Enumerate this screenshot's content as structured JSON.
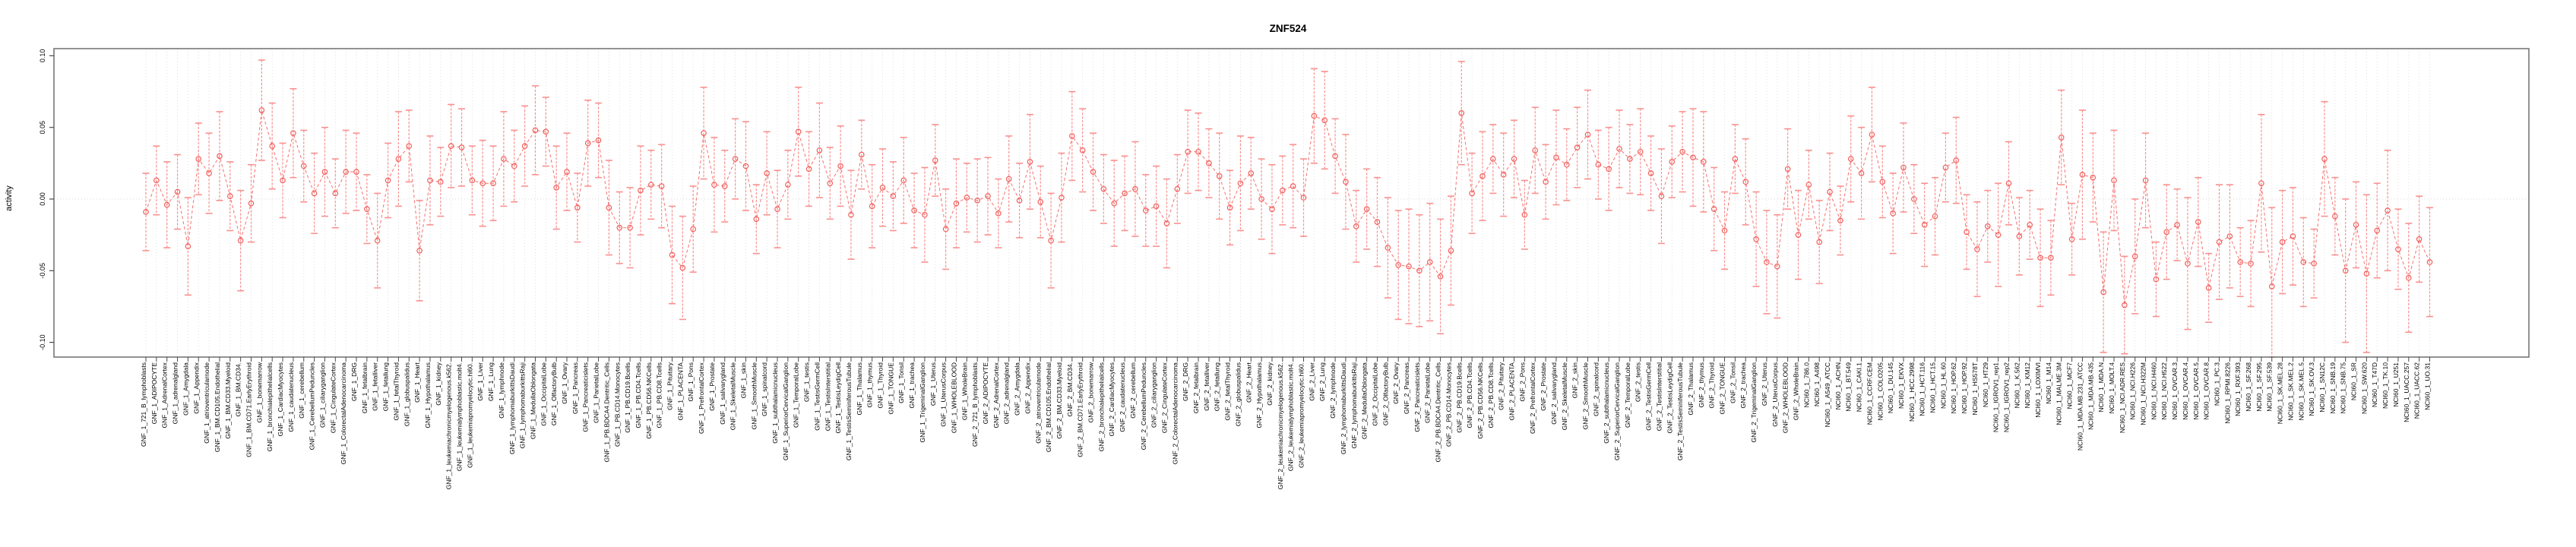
{
  "title": "ZNF524",
  "y_axis": {
    "label": "activity",
    "tick_labels": [
      "0.10",
      "0.05",
      "0.00",
      "-0.05",
      "-0.10"
    ],
    "tick_values": [
      0.1,
      0.05,
      0.0,
      -0.05,
      -0.1
    ]
  },
  "colors": {
    "point": "#f25f5c",
    "connector": "#f4726f",
    "errorbar": "#f9918f",
    "grid": "#d9d9d9",
    "zero_line": "#d9d9d9",
    "box": "#6e6e6e",
    "tick": "#4a4a4a",
    "label_text": "#000000"
  },
  "chart_data": {
    "type": "scatter",
    "subtype": "points-with-errorbars-and-dashed-connector",
    "title": "ZNF524",
    "xlabel": "",
    "ylabel": "activity",
    "ylim": [
      -0.112,
      0.105
    ],
    "yticks": [
      0.1,
      0.05,
      0.0,
      -0.05,
      -0.1
    ],
    "grid": "vertical dotted line per category; dotted horizontal line at 0",
    "legend": "none",
    "categories": [
      "GNF_1_721_B_lymphoblasts",
      "GNF_1_ADIPOCYTE",
      "GNF_1_AdrenalCortex",
      "GNF_1_adrenalgland",
      "GNF_1_Amygdala",
      "GNF_1_Appendix",
      "GNF_1_atrioventricularnode",
      "GNF_1_BM.CD105.Endothelial",
      "GNF_1_BM.CD33.Myeloid",
      "GNF_1_BM.CD34.",
      "GNF_1_BM.CD71.EarlyErythroid",
      "GNF_1_bonemarrow",
      "GNF_1_bronchialepithelialcells",
      "GNF_1_CardiacMyocytes",
      "GNF_1_caudatenucleus",
      "GNF_1_cerebellum",
      "GNF_1_CerebellumPeduncles",
      "GNF_1_ciliaryganglion",
      "GNF_1_CingulateCortex",
      "GNF_1_ColorectalAdenocarcinoma",
      "GNF_1_DRG",
      "GNF_1_fetalbrain",
      "GNF_1_fetalliver",
      "GNF_1_fetallung",
      "GNF_1_fetalThyroid",
      "GNF_1_globuspalidus",
      "GNF_1_Heart",
      "GNF_1_Hypothalamus",
      "GNF_1_kidney",
      "GNF_1_leukemiachronicmyelogenous.k562.",
      "GNF_1_leukemialymphoblastic.molt4.",
      "GNF_1_leukemiapromyelocytic.hl60.",
      "GNF_1_Liver",
      "GNF_1_Lung",
      "GNF_1_lymphnode",
      "GNF_1_lymphomaburkittsDaudi",
      "GNF_1_lymphomaburkittsRaji",
      "GNF_1_MedullaOblongata",
      "GNF_1_OccipitalLobe",
      "GNF_1_OlfactoryBulb",
      "GNF_1_Ovary",
      "GNF_1_Pancreas",
      "GNF_1_Pancreaticislets",
      "GNF_1_ParietalLobe",
      "GNF_1_PB.BDCA4.Dentritic_Cells",
      "GNF_1_PB.CD14.Monocytes",
      "GNF_1_PB.CD19.Bcells",
      "GNF_1_PB.CD4.Tcells",
      "GNF_1_PB.CD56.NKCells",
      "GNF_1_PB.CD8.Tcells",
      "GNF_1_Pituitary",
      "GNF_1_PLACENTA",
      "GNF_1_Pons",
      "GNF_1_PrefrontalCortex",
      "GNF_1_Prostate",
      "GNF_1_salivarygland",
      "GNF_1_SkeletalMuscle",
      "GNF_1_skin",
      "GNF_1_SmoothMuscle",
      "GNF_1_spinalcord",
      "GNF_1_subthalamicnucleus",
      "GNF_1_SuperiorCervicalGanglion",
      "GNF_1_TemporalLobe",
      "GNF_1_testis",
      "GNF_1_TestisGermCell",
      "GNF_1_TestisInterstitial",
      "GNF_1_TestisLeydigCell",
      "GNF_1_TestisSeminiferousTubule",
      "GNF_1_Thalamus",
      "GNF_1_thymus",
      "GNF_1_Thyroid",
      "GNF_1_TONGUE",
      "GNF_1_Tonsil",
      "GNF_1_trachea",
      "GNF_1_TrigeminalGanglion",
      "GNF_1_Uterus",
      "GNF_1_UterusCorpus",
      "GNF_1_WHOLEBLOOD",
      "GNF_1_WholeBrain",
      "GNF_2_721_B_lymphoblasts",
      "GNF_2_ADIPOCYTE",
      "GNF_2_AdrenalCortex",
      "GNF_2_adrenalgland",
      "GNF_2_Amygdala",
      "GNF_2_Appendix",
      "GNF_2_atrioventricularnode",
      "GNF_2_BM.CD105.Endothelial",
      "GNF_2_BM.CD33.Myeloid",
      "GNF_2_BM.CD34.",
      "GNF_2_BM.CD71.EarlyErythroid",
      "GNF_2_bonemarrow",
      "GNF_2_bronchialepithelialcells",
      "GNF_2_CardiacMyocytes",
      "GNF_2_caudatenucleus",
      "GNF_2_cerebellum",
      "GNF_2_CerebellumPeduncles",
      "GNF_2_ciliaryganglion",
      "GNF_2_CingulateCortex",
      "GNF_2_ColorectalAdenocarcinoma",
      "GNF_2_DRG",
      "GNF_2_fetalbrain",
      "GNF_2_fetalliver",
      "GNF_2_fetallung",
      "GNF_2_fetalThyroid",
      "GNF_2_globuspalidus",
      "GNF_2_Heart",
      "GNF_2_Hypothalamus",
      "GNF_2_kidney",
      "GNF_2_leukemiachronicmyelogenous.k562.",
      "GNF_2_leukemialymphoblastic.molt4.",
      "GNF_2_leukemiapromyelocytic.hl60.",
      "GNF_2_Liver",
      "GNF_2_Lung",
      "GNF_2_lymphnode",
      "GNF_2_lymphomaburkittsDaudi",
      "GNF_2_lymphomaburkittsRaji",
      "GNF_2_MedullaOblongata",
      "GNF_2_OccipitalLobe",
      "GNF_2_OlfactoryBulb",
      "GNF_2_Ovary",
      "GNF_2_Pancreas",
      "GNF_2_Pancreaticislets",
      "GNF_2_ParietalLobe",
      "GNF_2_PB.BDCA4.Dentritic_Cells",
      "GNF_2_PB.CD14.Monocytes",
      "GNF_2_PB.CD19.Bcells",
      "GNF_2_PB.CD4.Tcells",
      "GNF_2_PB.CD56.NKCells",
      "GNF_2_PB.CD8.Tcells",
      "GNF_2_Pituitary",
      "GNF_2_PLACENTA",
      "GNF_2_Pons",
      "GNF_2_PrefrontalCortex",
      "GNF_2_Prostate",
      "GNF_2_salivarygland",
      "GNF_2_SkeletalMuscle",
      "GNF_2_skin",
      "GNF_2_SmoothMuscle",
      "GNF_2_spinalcord",
      "GNF_2_subthalamicnucleus",
      "GNF_2_SuperiorCervicalGanglion",
      "GNF_2_TemporalLobe",
      "GNF_2_testis",
      "GNF_2_TestisGermCell",
      "GNF_2_TestisInterstitial",
      "GNF_2_TestisLeydigCell",
      "GNF_2_TestisSeminiferousTubule",
      "GNF_2_Thalamus",
      "GNF_2_thymus",
      "GNF_2_Thyroid",
      "GNF_2_TONGUE",
      "GNF_2_Tonsil",
      "GNF_2_trachea",
      "GNF_2_TrigeminalGanglion",
      "GNF_2_Uterus",
      "GNF_2_UterusCorpus",
      "GNF_2_WHOLEBLOOD",
      "GNF_2_WholeBrain",
      "NCI60_1_786.0",
      "NCI60_1_A498",
      "NCI60_1_A549_ATCC",
      "NCI60_1_ACHN",
      "NCI60_1_BT.549",
      "NCI60_1_CAKI.1",
      "NCI60_1_CCRF.CEM",
      "NCI60_1_COLO205",
      "NCI60_1_DU.145",
      "NCI60_1_EKVX",
      "NCI60_1_HCC.2998",
      "NCI60_1_HCT.116",
      "NCI60_1_HCT.15",
      "NCI60_1_HL.60",
      "NCI60_1_HOP.62",
      "NCI60_1_HOP.92",
      "NCI60_1_HS578T",
      "NCI60_1_HT29",
      "NCI60_1_IGROV1_rep1",
      "NCI60_1_IGROV1_rep2",
      "NCI60_1_K.562",
      "NCI60_1_KM12",
      "NCI60_1_LOXIMVI",
      "NCI60_1_M14",
      "NCI60_1_MALME.3M",
      "NCI60_1_MCF7",
      "NCI60_1_MDA.MB.231_ATCC",
      "NCI60_1_MDA.MB.435",
      "NCI60_1_MDA.N",
      "NCI60_1_MOLT.4",
      "NCI60_1_NCI.ADR.RES",
      "NCI60_1_NCI.H226",
      "NCI60_1_NCI.H322M",
      "NCI60_1_NCI.H460",
      "NCI60_1_NCI.H522",
      "NCI60_1_OVCAR.3",
      "NCI60_1_OVCAR.4",
      "NCI60_1_OVCAR.5",
      "NCI60_1_OVCAR.8",
      "NCI60_1_PC.3",
      "NCI60_1_RPMI.8226",
      "NCI60_1_RXF.393",
      "NCI60_1_SF.268",
      "NCI60_1_SF.295",
      "NCI60_1_SF.539",
      "NCI60_1_SK.MEL.28",
      "NCI60_1_SK.MEL.2",
      "NCI60_1_SK.MEL.5",
      "NCI60_1_SK.OV.3",
      "NCI60_1_SN12C",
      "NCI60_1_SNB.19",
      "NCI60_1_SNB.75",
      "NCI60_1_SR",
      "NCI60_1_SW.620",
      "NCI60_1_T47D",
      "NCI60_1_TK.10",
      "NCI60_1_U251",
      "NCI60_1_UACC.257",
      "NCI60_1_UACC.62",
      "NCI60_1_UO.31"
    ],
    "values": [
      -0.009,
      0.013,
      -0.004,
      0.005,
      -0.033,
      0.028,
      0.018,
      0.03,
      0.002,
      -0.029,
      -0.003,
      0.062,
      0.037,
      0.013,
      0.046,
      0.023,
      0.004,
      0.019,
      0.004,
      0.019,
      0.019,
      -0.007,
      -0.029,
      0.013,
      0.028,
      0.037,
      -0.036,
      0.013,
      0.012,
      0.037,
      0.036,
      0.013,
      0.011,
      0.011,
      0.028,
      0.023,
      0.037,
      0.048,
      0.047,
      0.008,
      0.019,
      -0.006,
      0.039,
      0.041,
      -0.006,
      -0.02,
      -0.02,
      0.006,
      0.01,
      0.009,
      -0.039,
      -0.048,
      -0.021,
      0.046,
      0.01,
      0.009,
      0.028,
      0.023,
      -0.014,
      0.018,
      -0.007,
      0.01,
      0.047,
      0.021,
      0.034,
      0.011,
      0.023,
      -0.011,
      0.031,
      -0.005,
      0.008,
      0.002,
      0.013,
      -0.008,
      -0.011,
      0.027,
      -0.021,
      -0.003,
      0.001,
      -0.001,
      0.002,
      -0.01,
      0.014,
      -0.001,
      0.026,
      -0.002,
      -0.029,
      0.001,
      0.044,
      0.034,
      0.019,
      0.007,
      -0.003,
      0.004,
      0.007,
      -0.008,
      -0.005,
      -0.017,
      0.007,
      0.033,
      0.033,
      0.025,
      0.016,
      -0.006,
      0.011,
      0.018,
      0.0,
      -0.007,
      0.006,
      0.009,
      0.001,
      0.058,
      0.055,
      0.03,
      0.012,
      -0.019,
      -0.007,
      -0.016,
      -0.034,
      -0.046,
      -0.047,
      -0.05,
      -0.044,
      -0.054,
      -0.036,
      0.06,
      0.004,
      0.016,
      0.028,
      0.017,
      0.028,
      -0.011,
      0.034,
      0.012,
      0.029,
      0.024,
      0.036,
      0.045,
      0.024,
      0.021,
      0.035,
      0.028,
      0.033,
      0.018,
      0.002,
      0.026,
      0.033,
      0.029,
      0.026,
      -0.007,
      -0.022,
      0.028,
      0.012,
      -0.028,
      -0.044,
      -0.047,
      0.021,
      -0.025,
      0.01,
      -0.03,
      0.005,
      -0.015,
      0.028,
      0.018,
      0.045,
      0.012,
      -0.01,
      0.022,
      0.0,
      -0.018,
      -0.012,
      0.022,
      0.027,
      -0.023,
      -0.035,
      -0.019,
      -0.025,
      0.011,
      -0.026,
      -0.018,
      -0.041,
      -0.041,
      0.043,
      -0.028,
      0.017,
      0.015,
      -0.065,
      0.013,
      -0.074,
      -0.04,
      0.013,
      -0.056,
      -0.023,
      -0.018,
      -0.045,
      -0.016,
      -0.062,
      -0.03,
      -0.026,
      -0.044,
      -0.045,
      0.011,
      -0.061,
      -0.03,
      -0.026,
      -0.044,
      -0.045,
      0.028,
      -0.012,
      -0.05,
      -0.018,
      -0.052,
      -0.022,
      -0.008,
      -0.035,
      -0.055,
      -0.028,
      -0.044
    ],
    "errors": [
      0.027,
      0.024,
      0.03,
      0.026,
      0.034,
      0.025,
      0.028,
      0.031,
      0.024,
      0.035,
      0.027,
      0.035,
      0.03,
      0.026,
      0.031,
      0.025,
      0.028,
      0.031,
      0.024,
      0.029,
      0.027,
      0.024,
      0.033,
      0.026,
      0.033,
      0.025,
      0.035,
      0.031,
      0.024,
      0.029,
      0.027,
      0.024,
      0.03,
      0.026,
      0.033,
      0.025,
      0.028,
      0.031,
      0.024,
      0.029,
      0.027,
      0.024,
      0.03,
      0.026,
      0.033,
      0.025,
      0.028,
      0.031,
      0.024,
      0.029,
      0.034,
      0.036,
      0.03,
      0.032,
      0.033,
      0.025,
      0.028,
      0.031,
      0.024,
      0.029,
      0.027,
      0.024,
      0.031,
      0.026,
      0.033,
      0.025,
      0.028,
      0.031,
      0.024,
      0.029,
      0.027,
      0.024,
      0.03,
      0.026,
      0.033,
      0.025,
      0.028,
      0.031,
      0.024,
      0.029,
      0.027,
      0.024,
      0.03,
      0.026,
      0.033,
      0.025,
      0.033,
      0.031,
      0.031,
      0.029,
      0.027,
      0.024,
      0.03,
      0.026,
      0.033,
      0.025,
      0.028,
      0.031,
      0.024,
      0.029,
      0.027,
      0.024,
      0.03,
      0.026,
      0.033,
      0.025,
      0.028,
      0.031,
      0.024,
      0.029,
      0.027,
      0.033,
      0.034,
      0.026,
      0.033,
      0.025,
      0.028,
      0.031,
      0.035,
      0.038,
      0.04,
      0.039,
      0.041,
      0.04,
      0.038,
      0.036,
      0.028,
      0.031,
      0.024,
      0.029,
      0.027,
      0.024,
      0.03,
      0.026,
      0.033,
      0.025,
      0.028,
      0.031,
      0.024,
      0.029,
      0.027,
      0.024,
      0.03,
      0.026,
      0.033,
      0.025,
      0.028,
      0.034,
      0.035,
      0.029,
      0.027,
      0.024,
      0.03,
      0.033,
      0.036,
      0.036,
      0.028,
      0.031,
      0.024,
      0.029,
      0.027,
      0.024,
      0.03,
      0.032,
      0.033,
      0.025,
      0.028,
      0.031,
      0.024,
      0.029,
      0.027,
      0.024,
      0.03,
      0.026,
      0.033,
      0.025,
      0.036,
      0.029,
      0.027,
      0.024,
      0.034,
      0.026,
      0.033,
      0.025,
      0.045,
      0.031,
      0.042,
      0.035,
      0.034,
      0.04,
      0.033,
      0.026,
      0.033,
      0.025,
      0.046,
      0.031,
      0.024,
      0.04,
      0.036,
      0.024,
      0.03,
      0.048,
      0.055,
      0.036,
      0.034,
      0.031,
      0.024,
      0.04,
      0.027,
      0.05,
      0.03,
      0.055,
      0.033,
      0.042,
      0.028,
      0.038,
      0.03,
      0.038
    ]
  }
}
